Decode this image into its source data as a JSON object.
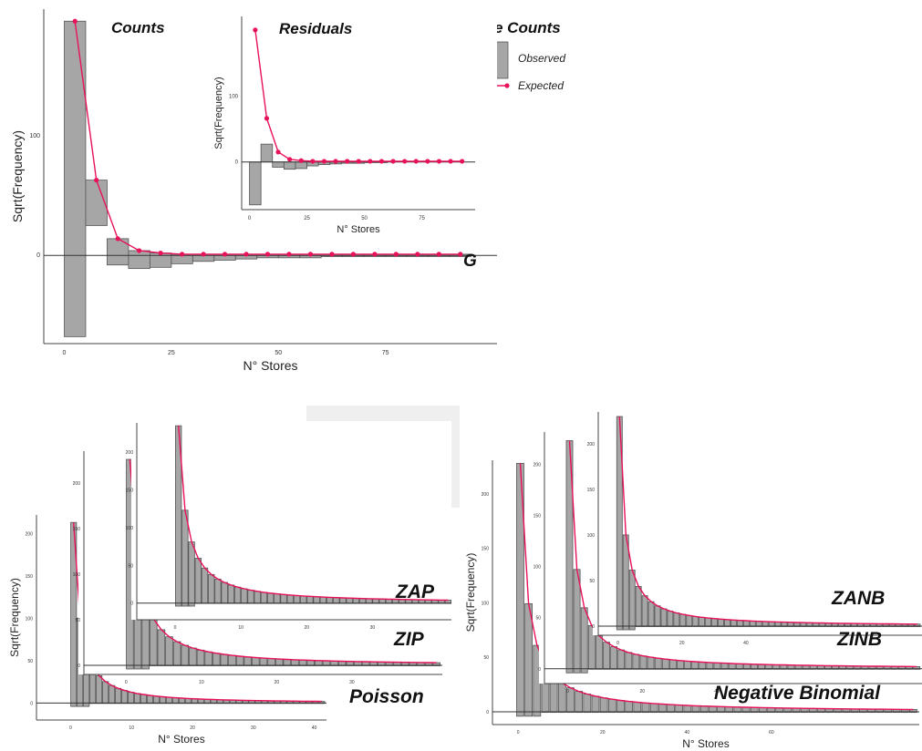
{
  "colors": {
    "expected": "#e8115b",
    "bars": "#a6a6a6",
    "shade": "#efefef"
  },
  "legend": {
    "title": "Store Counts",
    "observed": "Observed",
    "expected": "Expected"
  },
  "labels": {
    "counts": "Counts",
    "residuals": "Residuals",
    "g": "G",
    "zap": "ZAP",
    "zip": "ZIP",
    "poisson": "Poisson",
    "zanb": "ZANB",
    "zinb": "ZINB",
    "negbin": "Negative Binomial"
  },
  "chart_data": [
    {
      "id": "counts-main",
      "type": "bar",
      "title": "Counts",
      "xlabel": "N° Stores",
      "ylabel": "Sqrt(Frequency)",
      "xlim": [
        -5,
        100
      ],
      "ylim": [
        -70,
        200
      ],
      "xticks": [
        0,
        25,
        50,
        75
      ],
      "yticks": [
        0,
        100
      ],
      "bars": [
        {
          "x": 2.5,
          "top": 196,
          "bottom": -68
        },
        {
          "x": 7.5,
          "top": 63,
          "bottom": 25
        },
        {
          "x": 12.5,
          "top": 14,
          "bottom": -8
        },
        {
          "x": 17.5,
          "top": 4,
          "bottom": -11
        },
        {
          "x": 22.5,
          "top": 2,
          "bottom": -10
        },
        {
          "x": 27.5,
          "top": 1,
          "bottom": -7
        },
        {
          "x": 32.5,
          "top": 1,
          "bottom": -5
        },
        {
          "x": 37.5,
          "top": 1,
          "bottom": -4
        },
        {
          "x": 42.5,
          "top": 1,
          "bottom": -3
        },
        {
          "x": 47.5,
          "top": 1,
          "bottom": -2
        },
        {
          "x": 52.5,
          "top": 1,
          "bottom": -2
        },
        {
          "x": 57.5,
          "top": 1,
          "bottom": -2
        },
        {
          "x": 62.5,
          "top": 1,
          "bottom": -1
        },
        {
          "x": 67.5,
          "top": 1,
          "bottom": -1
        },
        {
          "x": 72.5,
          "top": 1,
          "bottom": -1
        },
        {
          "x": 77.5,
          "top": 1,
          "bottom": -1
        },
        {
          "x": 82.5,
          "top": 1,
          "bottom": -1
        },
        {
          "x": 87.5,
          "top": 1,
          "bottom": -1
        },
        {
          "x": 92.5,
          "top": 1,
          "bottom": -1
        }
      ],
      "expected": {
        "x": [
          2.5,
          7.5,
          12.5,
          17.5,
          22.5,
          27.5,
          32.5,
          37.5,
          42.5,
          47.5,
          52.5,
          57.5,
          62.5,
          67.5,
          72.5,
          77.5,
          82.5,
          87.5,
          92.5
        ],
        "y": [
          196,
          63,
          14,
          4,
          2,
          1,
          1,
          1,
          1,
          1,
          1,
          1,
          1,
          1,
          1,
          1,
          1,
          1,
          1
        ]
      }
    },
    {
      "id": "residuals-inset",
      "type": "bar",
      "title": "Residuals",
      "xlabel": "N° Stores",
      "ylabel": "Sqrt(Frequency)",
      "xlim": [
        -3,
        97
      ],
      "ylim": [
        -75,
        215
      ],
      "xticks": [
        0,
        25,
        50,
        75
      ],
      "yticks": [
        0,
        100
      ],
      "bars": [
        {
          "x": 2.5,
          "top": 0,
          "bottom": -65
        },
        {
          "x": 7.5,
          "top": 27,
          "bottom": 0
        },
        {
          "x": 12.5,
          "top": 0,
          "bottom": -8
        },
        {
          "x": 17.5,
          "top": 0,
          "bottom": -11
        },
        {
          "x": 22.5,
          "top": 0,
          "bottom": -10
        },
        {
          "x": 27.5,
          "top": 0,
          "bottom": -6
        },
        {
          "x": 32.5,
          "top": 0,
          "bottom": -4
        },
        {
          "x": 37.5,
          "top": 0,
          "bottom": -3
        },
        {
          "x": 42.5,
          "top": 0,
          "bottom": -2
        },
        {
          "x": 47.5,
          "top": 0,
          "bottom": -2
        },
        {
          "x": 52.5,
          "top": 0,
          "bottom": -1
        },
        {
          "x": 57.5,
          "top": 0,
          "bottom": -1
        }
      ],
      "expected": {
        "x": [
          2.5,
          7.5,
          12.5,
          17.5,
          22.5,
          27.5,
          32.5,
          37.5,
          42.5,
          47.5,
          52.5,
          57.5,
          62.5,
          67.5,
          72.5,
          77.5,
          82.5,
          87.5,
          92.5
        ],
        "y": [
          200,
          66,
          15,
          4,
          2,
          1,
          1,
          1,
          1,
          1,
          1,
          1,
          1,
          1,
          1,
          1,
          1,
          1,
          1
        ]
      }
    },
    {
      "id": "poisson",
      "type": "bar",
      "title": "Poisson",
      "xlabel": "N° Stores",
      "ylabel": "Sqrt(Frequency)",
      "xlim": [
        -5,
        42
      ],
      "ylim": [
        -20,
        225
      ],
      "xticks": [
        0,
        10,
        20,
        30,
        40
      ],
      "yticks": [
        0,
        50,
        100,
        150,
        200
      ],
      "decay": {
        "peak": 213,
        "scale": 1.4,
        "power": 1.4,
        "step": 1,
        "n": 40
      }
    },
    {
      "id": "zip",
      "type": "bar",
      "title": "ZIP",
      "xlabel": "",
      "ylabel": "",
      "xlim": [
        -5,
        42
      ],
      "ylim": [
        -10,
        240
      ],
      "xticks": [
        0,
        10,
        20,
        30
      ],
      "yticks": [
        0,
        50,
        100,
        150,
        200
      ],
      "decay": {
        "peak": 226,
        "scale": 1.4,
        "power": 1.3,
        "step": 1,
        "n": 40
      }
    },
    {
      "id": "zap",
      "type": "bar",
      "title": "ZAP",
      "xlabel": "",
      "ylabel": "",
      "xlim": [
        -5,
        42
      ],
      "ylim": [
        -10,
        240
      ],
      "xticks": [
        0,
        10,
        20,
        30
      ],
      "yticks": [
        0,
        50,
        100,
        150,
        200
      ],
      "decay": {
        "peak": 235,
        "scale": 1.4,
        "power": 1.2,
        "step": 1,
        "n": 42
      }
    },
    {
      "id": "negative-binomial",
      "type": "bar",
      "title": "Negative Binomial",
      "xlabel": "N° Stores",
      "ylabel": "Sqrt(Frequency)",
      "xlim": [
        -5,
        95
      ],
      "ylim": [
        -10,
        235
      ],
      "xticks": [
        0,
        20,
        40,
        60
      ],
      "yticks": [
        0,
        50,
        100,
        150,
        200
      ],
      "decay": {
        "peak": 228,
        "scale": 1.0,
        "power": 1.2,
        "step": 2,
        "n": 48
      }
    },
    {
      "id": "zinb",
      "type": "bar",
      "title": "ZINB",
      "xlabel": "",
      "ylabel": "",
      "xlim": [
        -5,
        95
      ],
      "ylim": [
        -10,
        235
      ],
      "xticks": [
        0,
        20,
        40
      ],
      "yticks": [
        0,
        50,
        100,
        150,
        200
      ],
      "decay": {
        "peak": 223,
        "scale": 1.0,
        "power": 1.2,
        "step": 2,
        "n": 48
      }
    },
    {
      "id": "zanb",
      "type": "bar",
      "title": "ZANB",
      "xlabel": "",
      "ylabel": "",
      "xlim": [
        -5,
        95
      ],
      "ylim": [
        -10,
        235
      ],
      "xticks": [
        0,
        20,
        40
      ],
      "yticks": [
        0,
        50,
        100,
        150,
        200
      ],
      "decay": {
        "peak": 230,
        "scale": 1.0,
        "power": 1.2,
        "step": 2,
        "n": 48
      }
    }
  ]
}
